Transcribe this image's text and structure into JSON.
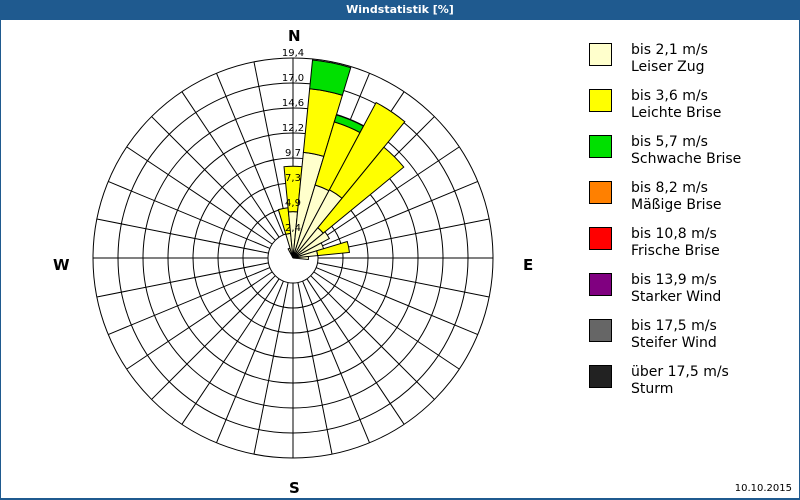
{
  "window": {
    "title": "Windstatistik [%]",
    "date": "10.10.2015"
  },
  "compass": {
    "north": "N",
    "east": "E",
    "south": "S",
    "west": "W"
  },
  "colors": {
    "title_bar": "#1f5a8f",
    "grid": "#000000",
    "background": "#ffffff"
  },
  "legend": [
    {
      "range": "bis 2,1 m/s",
      "name": "Leiser Zug",
      "color": "#ffffcc"
    },
    {
      "range": "bis 3,6 m/s",
      "name": "Leichte Brise",
      "color": "#ffff00"
    },
    {
      "range": "bis 5,7 m/s",
      "name": "Schwache Brise",
      "color": "#00e000"
    },
    {
      "range": "bis 8,2 m/s",
      "name": "Mäßige Brise",
      "color": "#ff8000"
    },
    {
      "range": "bis 10,8 m/s",
      "name": "Frische Brise",
      "color": "#ff0000"
    },
    {
      "range": "bis 13,9 m/s",
      "name": "Starker Wind",
      "color": "#800080"
    },
    {
      "range": "bis 17,5 m/s",
      "name": "Steifer Wind",
      "color": "#666666"
    },
    {
      "range": "über 17,5 m/s",
      "name": "Sturm",
      "color": "#222222"
    }
  ],
  "chart_data": {
    "type": "polar-stacked-bar",
    "title": "Windstatistik [%]",
    "radial_unit": "%",
    "radial_ticks": [
      "2,4",
      "4,9",
      "7,3",
      "9,7",
      "12,2",
      "14,6",
      "17,0",
      "19,4"
    ],
    "radial_max": 19.4,
    "direction_count": 32,
    "direction_step_deg": 11.25,
    "grid": true,
    "legend_position": "right",
    "series_names": [
      "bis 2,1 m/s",
      "bis 3,6 m/s",
      "bis 5,7 m/s",
      "bis 8,2 m/s",
      "bis 10,8 m/s",
      "bis 13,9 m/s",
      "bis 17,5 m/s",
      "über 17,5 m/s"
    ],
    "sectors": [
      {
        "direction_deg": -22.5,
        "stack": [
          1.0
        ]
      },
      {
        "direction_deg": -11.25,
        "stack": [
          2.4,
          4.9
        ]
      },
      {
        "direction_deg": 0,
        "stack": [
          4.5,
          8.9
        ]
      },
      {
        "direction_deg": 11.25,
        "stack": [
          10.3,
          16.5,
          19.3
        ]
      },
      {
        "direction_deg": 22.5,
        "stack": [
          7.4,
          13.8,
          14.5
        ]
      },
      {
        "direction_deg": 33.75,
        "stack": [
          7.5,
          17.1
        ]
      },
      {
        "direction_deg": 45,
        "stack": [
          3.8,
          13.9
        ]
      },
      {
        "direction_deg": 56.25,
        "stack": [
          4.0
        ]
      },
      {
        "direction_deg": 67.5,
        "stack": [
          3.1
        ]
      },
      {
        "direction_deg": 78.75,
        "stack": [
          2.4,
          5.5
        ]
      },
      {
        "direction_deg": 90,
        "stack": [
          1.5
        ]
      }
    ],
    "note": "stack values are cumulative outer radii in % per speed class (cream, yellow, green)"
  }
}
